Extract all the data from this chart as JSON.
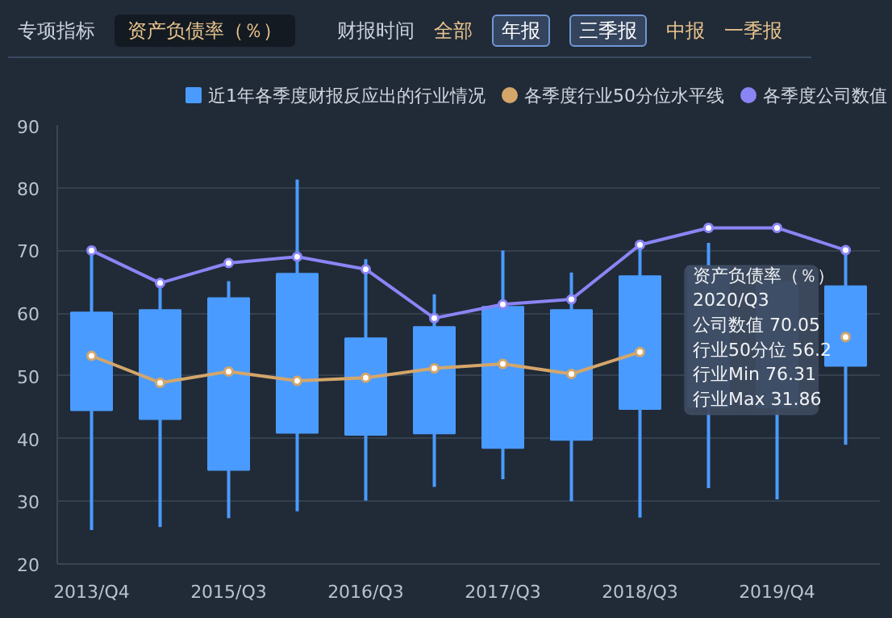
{
  "chart_data": {
    "type": "box",
    "categories": [
      "2013/Q4",
      null,
      "2015/Q3",
      null,
      "2016/Q3",
      null,
      "2017/Q3",
      null,
      "2018/Q3",
      null,
      "2019/Q4",
      null
    ],
    "ylim": [
      20,
      90
    ],
    "yticks": [
      20,
      30,
      40,
      50,
      60,
      70,
      80,
      90
    ],
    "grid": "y",
    "legend": "top right",
    "marker": "circle",
    "series": [
      {
        "type": "box",
        "name": "近1年各季度财报反应出的行业情况",
        "color": "#4a9bff",
        "boxes": [
          {
            "low": 25.4,
            "q1": 44.5,
            "q3": 60.1,
            "high": 70.0
          },
          {
            "low": 25.9,
            "q1": 43.1,
            "q3": 60.5,
            "high": 64.9
          },
          {
            "low": 27.3,
            "q1": 35.0,
            "q3": 62.4,
            "high": 65.1
          },
          {
            "low": 28.4,
            "q1": 40.9,
            "q3": 66.3,
            "high": 81.3
          },
          {
            "low": 30.1,
            "q1": 40.6,
            "q3": 56.0,
            "high": 68.6
          },
          {
            "low": 32.3,
            "q1": 40.8,
            "q3": 57.8,
            "high": 63.0
          },
          {
            "low": 33.5,
            "q1": 38.5,
            "q3": 61.0,
            "high": 70.0
          },
          {
            "low": 30.0,
            "q1": 39.8,
            "q3": 60.5,
            "high": 66.5
          },
          {
            "low": 27.4,
            "q1": 44.7,
            "q3": 65.9,
            "high": 70.8
          },
          {
            "low": 32.1,
            "q1": 45.0,
            "q3": 67.4,
            "high": 71.2
          },
          {
            "low": 30.3,
            "q1": 45.0,
            "q3": 65.0,
            "high": 67.2
          },
          {
            "low": 39.0,
            "q1": 51.6,
            "q3": 64.3,
            "high": 70.0
          }
        ]
      },
      {
        "type": "line",
        "name": "各季度行业50分位水平线",
        "color": "#d4a66a",
        "values": [
          53.2,
          48.9,
          50.7,
          49.2,
          49.7,
          51.2,
          51.9,
          50.3,
          53.8,
          null,
          null,
          56.2
        ]
      },
      {
        "type": "line",
        "name": "各季度公司数值",
        "color": "#8a85f5",
        "values": [
          70.0,
          64.8,
          68.0,
          69.0,
          67.0,
          59.2,
          61.4,
          62.2,
          70.9,
          73.6,
          73.6,
          70.05
        ]
      }
    ],
    "annotations": [
      "专项指标",
      "资产负债率（％）",
      "财报时间",
      "全部",
      "年报",
      "三季报",
      "中报",
      "一季报",
      "资产负债率（％）",
      "2020/Q3",
      "公司数值 70.05",
      "行业50分位 56.2",
      "行业Min 76.31",
      "行业Max 31.86"
    ]
  }
}
